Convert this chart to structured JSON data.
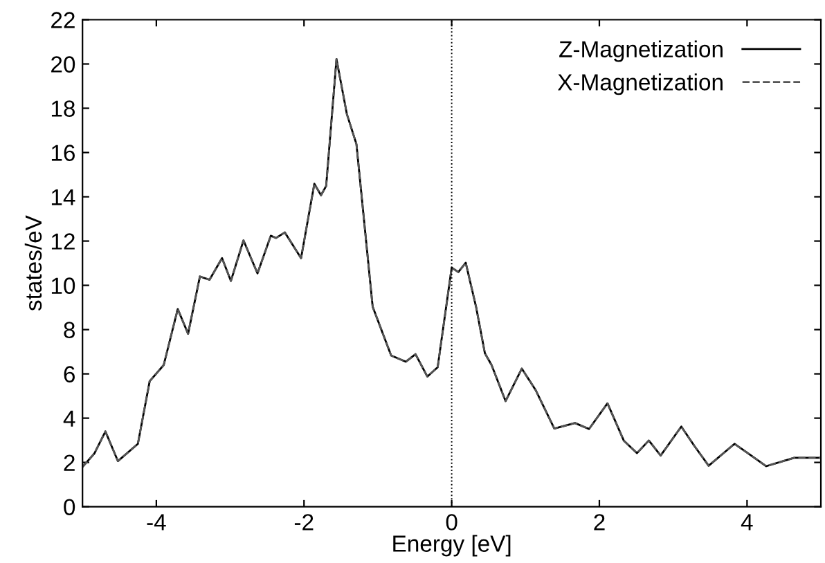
{
  "chart_data": {
    "type": "line",
    "xlabel": "Energy [eV]",
    "ylabel": "states/eV",
    "xlim": [
      -5,
      5
    ],
    "ylim": [
      0,
      22
    ],
    "xticks": [
      -4,
      -2,
      0,
      2,
      4
    ],
    "yticks": [
      0,
      2,
      4,
      6,
      8,
      10,
      12,
      14,
      16,
      18,
      20,
      22
    ],
    "grid": false,
    "legend": "top right",
    "ref_lines": [
      {
        "axis": "x",
        "value": 0,
        "line_style": "dotted",
        "color": "#000000"
      }
    ],
    "series": [
      {
        "name": "Z-Magnetization",
        "color": "#000000",
        "line_style": "solid",
        "x": [
          -5,
          -4.84,
          -4.69,
          -4.52,
          -4.25,
          -4.09,
          -3.9,
          -3.71,
          -3.57,
          -3.41,
          -3.28,
          -3.11,
          -2.99,
          -2.82,
          -2.63,
          -2.45,
          -2.38,
          -2.26,
          -2.04,
          -1.86,
          -1.77,
          -1.7,
          -1.56,
          -1.42,
          -1.29,
          -1.07,
          -0.82,
          -0.62,
          -0.49,
          -0.33,
          -0.19,
          0,
          0.09,
          0.19,
          0.33,
          0.45,
          0.54,
          0.73,
          0.95,
          1.14,
          1.39,
          1.67,
          1.86,
          2.11,
          2.33,
          2.51,
          2.67,
          2.83,
          3.11,
          3.29,
          3.48,
          3.83,
          4.01,
          4.26,
          4.64,
          5
        ],
        "values": [
          1.8,
          2.4,
          3.4,
          2.06,
          2.84,
          5.67,
          6.4,
          8.93,
          7.81,
          10.4,
          10.25,
          11.23,
          10.2,
          12.03,
          10.54,
          12.24,
          12.14,
          12.39,
          11.23,
          14.59,
          14.07,
          14.49,
          20.22,
          17.74,
          16.38,
          9.03,
          6.83,
          6.55,
          6.89,
          5.88,
          6.3,
          10.8,
          10.6,
          11.02,
          9.03,
          6.93,
          6.4,
          4.77,
          6.24,
          5.25,
          3.53,
          3.78,
          3.51,
          4.67,
          2.99,
          2.42,
          2.99,
          2.31,
          3.62,
          2.73,
          1.85,
          2.84,
          2.42,
          1.83,
          2.21,
          2.21
        ]
      },
      {
        "name": "X-Magnetization",
        "color": "#555555",
        "line_style": "dashed",
        "x": [
          -5,
          -4.84,
          -4.69,
          -4.52,
          -4.25,
          -4.09,
          -3.9,
          -3.71,
          -3.57,
          -3.41,
          -3.28,
          -3.11,
          -2.99,
          -2.82,
          -2.63,
          -2.45,
          -2.38,
          -2.26,
          -2.04,
          -1.86,
          -1.77,
          -1.7,
          -1.56,
          -1.42,
          -1.29,
          -1.07,
          -0.82,
          -0.62,
          -0.49,
          -0.33,
          -0.19,
          0,
          0.09,
          0.19,
          0.33,
          0.45,
          0.54,
          0.73,
          0.95,
          1.14,
          1.39,
          1.67,
          1.86,
          2.11,
          2.33,
          2.51,
          2.67,
          2.83,
          3.11,
          3.29,
          3.48,
          3.83,
          4.01,
          4.26,
          4.64,
          5
        ],
        "values": [
          1.8,
          2.4,
          3.4,
          2.06,
          2.84,
          5.67,
          6.4,
          8.93,
          7.81,
          10.4,
          10.25,
          11.23,
          10.2,
          12.03,
          10.54,
          12.24,
          12.14,
          12.39,
          11.23,
          14.59,
          14.07,
          14.49,
          20.22,
          17.74,
          16.38,
          9.03,
          6.83,
          6.55,
          6.89,
          5.88,
          6.3,
          10.8,
          10.6,
          11.02,
          9.03,
          6.93,
          6.4,
          4.77,
          6.24,
          5.25,
          3.53,
          3.78,
          3.51,
          4.67,
          2.99,
          2.42,
          2.99,
          2.31,
          3.62,
          2.73,
          1.85,
          2.84,
          2.42,
          1.83,
          2.21,
          2.21
        ]
      }
    ]
  }
}
